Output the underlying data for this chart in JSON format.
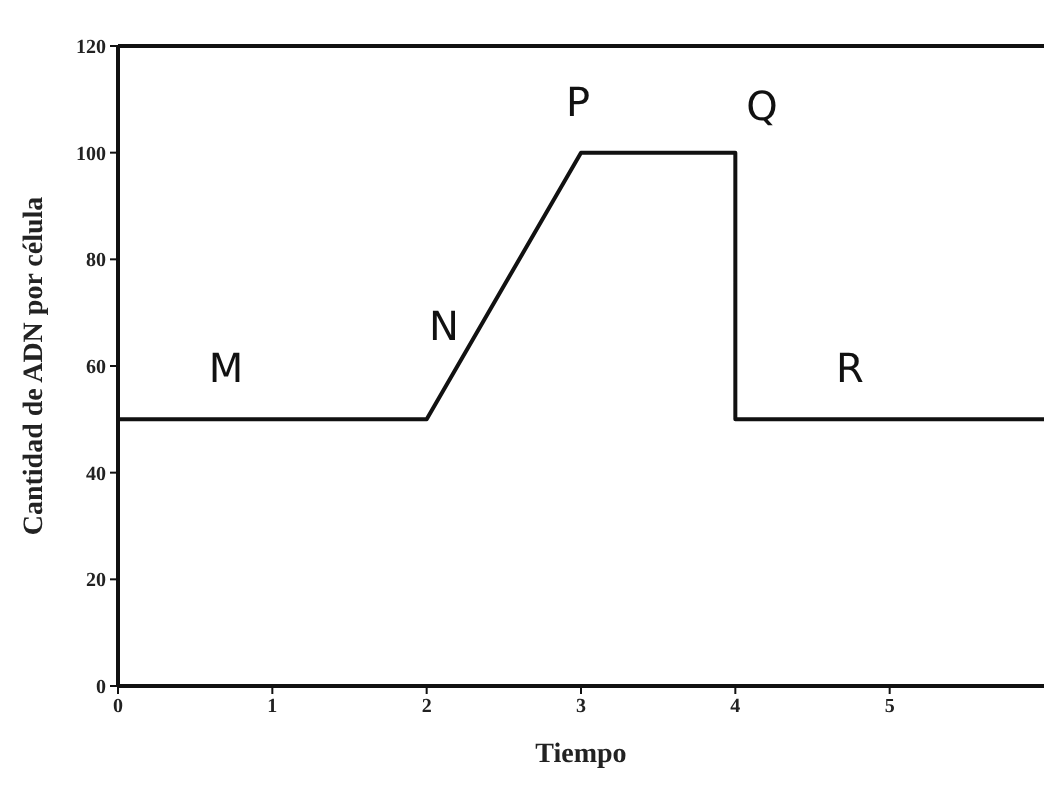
{
  "chart_data": {
    "type": "line",
    "xlabel": "Tiempo",
    "ylabel": "Cantidad de ADN por célula",
    "x": [
      0,
      2,
      3,
      4,
      4,
      6
    ],
    "series": [
      {
        "color": "#111111",
        "values": [
          50,
          50,
          100,
          100,
          50,
          50
        ]
      }
    ],
    "xlim": [
      0,
      6
    ],
    "xticks": [
      0,
      1,
      2,
      3,
      4,
      5
    ],
    "ylim": [
      0,
      120
    ],
    "yticks": [
      0,
      20,
      40,
      60,
      80,
      100,
      120
    ],
    "grid": false,
    "legend": false,
    "marker": "none",
    "line_style": "solid",
    "annotations": [
      "M",
      "N",
      "P",
      "Q",
      "R"
    ]
  }
}
